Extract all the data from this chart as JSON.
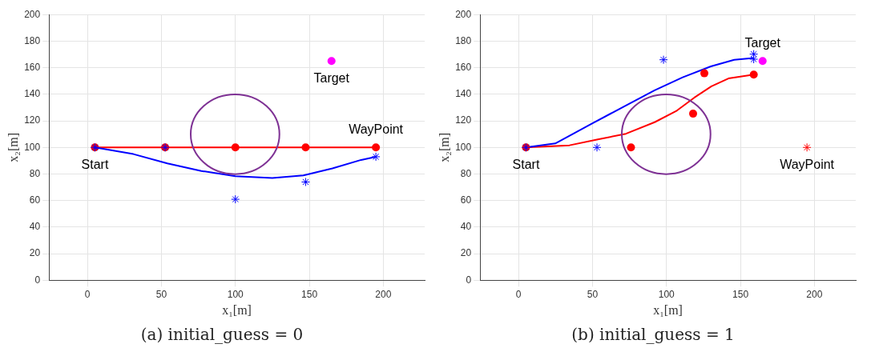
{
  "chart_data": [
    {
      "type": "line",
      "title": "(a) initial_guess = 0",
      "xlabel": "x₁[m]",
      "ylabel": "x₂[m]",
      "xlim": [
        -26,
        228
      ],
      "ylim": [
        0,
        200
      ],
      "xticks": [
        0,
        50,
        100,
        150,
        200
      ],
      "yticks": [
        0,
        20,
        40,
        60,
        80,
        100,
        120,
        140,
        160,
        180,
        200
      ],
      "grid": true,
      "annotations": [
        {
          "text": "Start",
          "x": 5,
          "y": 100
        },
        {
          "text": "WayPoint",
          "x": 195,
          "y": 100
        },
        {
          "text": "Target",
          "x": 165,
          "y": 165
        }
      ],
      "series": [
        {
          "type": "line",
          "color": "#ff0000",
          "marker": "circle",
          "x": [
            5,
            52.5,
            100,
            147.5,
            195
          ],
          "values": [
            100,
            100,
            100,
            100,
            100
          ]
        },
        {
          "type": "line",
          "color": "#0000ff",
          "marker": "none",
          "x": [
            5,
            31,
            54,
            77,
            100,
            125,
            146,
            165.6,
            185,
            195
          ],
          "values": [
            100,
            95,
            88,
            82.3,
            78.4,
            77,
            79,
            84.2,
            90.6,
            93
          ]
        },
        {
          "type": "scatter",
          "color": "#0000ff",
          "marker": "cross",
          "x": [
            5,
            52.5,
            100,
            147.5,
            195
          ],
          "values": [
            100,
            100,
            61,
            74,
            93
          ]
        },
        {
          "type": "scatter",
          "color": "#ff00ff",
          "marker": "circle",
          "x": [
            165
          ],
          "values": [
            165
          ]
        }
      ]
    },
    {
      "type": "line",
      "title": "(b) initial_guess = 1",
      "xlabel": "x₁[m]",
      "ylabel": "x₂[m]",
      "xlim": [
        -26,
        228
      ],
      "ylim": [
        0,
        200
      ],
      "xticks": [
        0,
        50,
        100,
        150,
        200
      ],
      "yticks": [
        0,
        20,
        40,
        60,
        80,
        100,
        120,
        140,
        160,
        180,
        200
      ],
      "grid": true,
      "annotations": [
        {
          "text": "Start",
          "x": 5,
          "y": 100
        },
        {
          "text": "WayPoint",
          "x": 195,
          "y": 100
        },
        {
          "text": "Target",
          "x": 165,
          "y": 165
        }
      ],
      "series": [
        {
          "type": "line",
          "color": "#ff0000",
          "marker": "none",
          "x": [
            5,
            34.4,
            53.6,
            72.6,
            92,
            107,
            118.7,
            130.4,
            141.9,
            159
          ],
          "values": [
            100,
            101.6,
            106,
            110.3,
            119,
            127.7,
            137.4,
            146,
            151.9,
            154.8
          ]
        },
        {
          "type": "line",
          "color": "#0000ff",
          "marker": "none",
          "x": [
            5,
            24.8,
            49.7,
            72.6,
            92,
            111,
            130,
            145.8,
            159
          ],
          "values": [
            100,
            103,
            118,
            131.6,
            143,
            152.8,
            161,
            166,
            167.3
          ]
        },
        {
          "type": "scatter",
          "color": "#ff0000",
          "marker": "circle",
          "x": [
            5,
            76,
            118,
            125.6,
            159
          ],
          "values": [
            100,
            100,
            125.4,
            155.8,
            154.8
          ]
        },
        {
          "type": "scatter",
          "color": "#0000ff",
          "marker": "cross",
          "x": [
            5,
            53,
            98,
            159,
            159
          ],
          "values": [
            100,
            100,
            166,
            170.2,
            166.4
          ]
        },
        {
          "type": "scatter",
          "color": "#ff00ff",
          "marker": "circle",
          "x": [
            165
          ],
          "values": [
            165
          ]
        },
        {
          "type": "scatter",
          "color": "#ff0000",
          "marker": "cross",
          "x": [
            195
          ],
          "values": [
            100
          ]
        }
      ]
    }
  ]
}
